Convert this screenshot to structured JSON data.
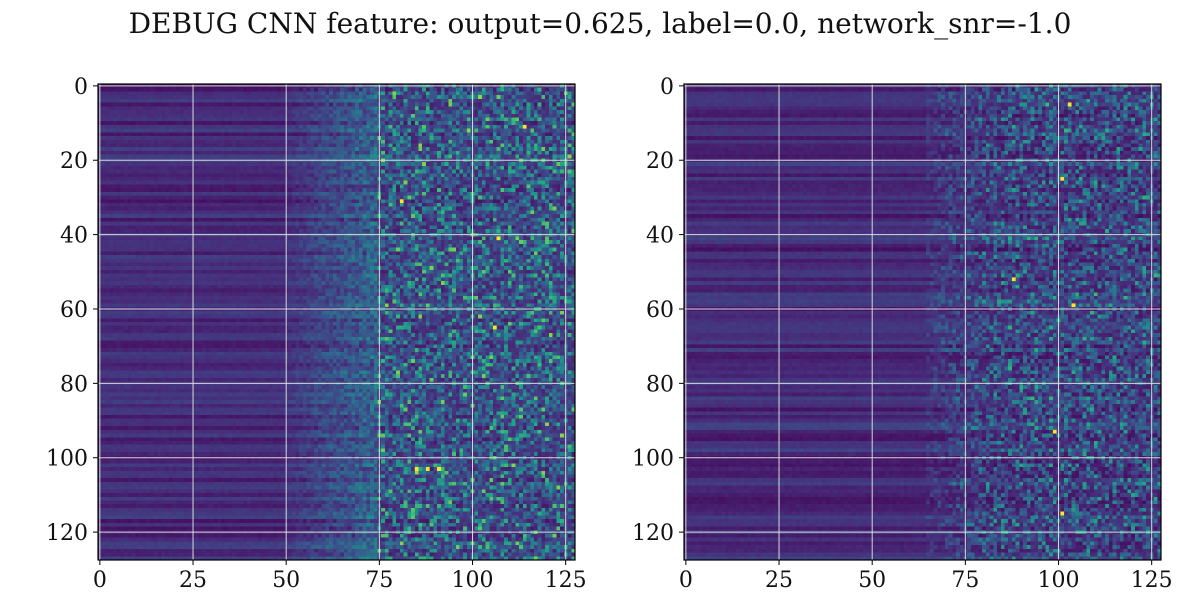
{
  "figure": {
    "title": "DEBUG CNN feature: output=0.625, label=0.0, network_snr=-1.0"
  },
  "chart_data": [
    {
      "type": "heatmap",
      "title": "",
      "xlabel": "",
      "ylabel": "",
      "rows": 128,
      "cols": 128,
      "xlim": [
        0,
        127
      ],
      "ylim": [
        127,
        0
      ],
      "xticks": [
        0,
        25,
        50,
        75,
        100,
        125
      ],
      "yticks": [
        0,
        20,
        40,
        60,
        80,
        100,
        120
      ],
      "xtick_labels": [
        "0",
        "25",
        "50",
        "75",
        "100",
        "125"
      ],
      "ytick_labels": [
        "0",
        "20",
        "40",
        "60",
        "80",
        "100",
        "120"
      ],
      "grid": true,
      "colormap": "viridis",
      "pattern": "uniform low values on columns 0-50, increasingly noisy with higher values toward columns 75-127",
      "hotspots": [
        {
          "row": 11,
          "col": 114
        },
        {
          "row": 31,
          "col": 81
        },
        {
          "row": 41,
          "col": 107
        },
        {
          "row": 65,
          "col": 106
        },
        {
          "row": 103,
          "col": 85
        },
        {
          "row": 103,
          "col": 88
        },
        {
          "row": 103,
          "col": 91
        }
      ]
    },
    {
      "type": "heatmap",
      "title": "",
      "xlabel": "",
      "ylabel": "",
      "rows": 128,
      "cols": 128,
      "xlim": [
        0,
        127
      ],
      "ylim": [
        127,
        0
      ],
      "xticks": [
        0,
        25,
        50,
        75,
        100,
        125
      ],
      "yticks": [
        0,
        20,
        40,
        60,
        80,
        100,
        120
      ],
      "xtick_labels": [
        "0",
        "25",
        "50",
        "75",
        "100",
        "125"
      ],
      "ytick_labels": [
        "0",
        "20",
        "40",
        "60",
        "80",
        "100",
        "120"
      ],
      "grid": true,
      "colormap": "viridis",
      "pattern": "low values overall with horizontal banding, sparse brighter noise on columns 70-127",
      "hotspots": [
        {
          "row": 5,
          "col": 103
        },
        {
          "row": 25,
          "col": 101
        },
        {
          "row": 52,
          "col": 88
        },
        {
          "row": 59,
          "col": 104
        },
        {
          "row": 93,
          "col": 99
        },
        {
          "row": 115,
          "col": 101
        }
      ]
    }
  ]
}
